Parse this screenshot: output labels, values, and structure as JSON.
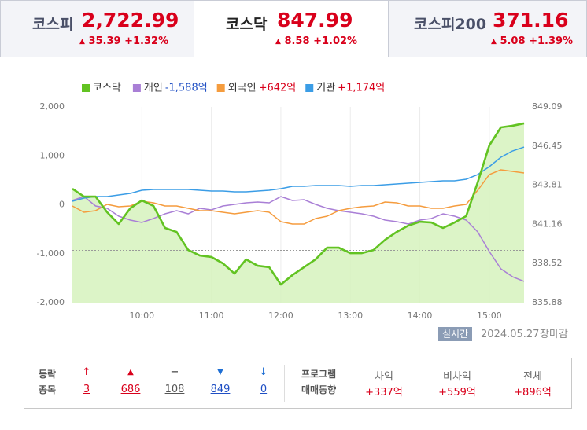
{
  "tabs": [
    {
      "name": "코스피",
      "value": "2,722.99",
      "change": "35.39",
      "rate": "+1.32%"
    },
    {
      "name": "코스닥",
      "value": "847.99",
      "change": "8.58",
      "rate": "+1.02%"
    },
    {
      "name": "코스피200",
      "value": "371.16",
      "change": "5.08",
      "rate": "+1.39%"
    }
  ],
  "chart_data": {
    "type": "line",
    "x": [
      "09:00",
      "09:10",
      "09:20",
      "09:30",
      "09:40",
      "09:50",
      "10:00",
      "10:10",
      "10:20",
      "10:30",
      "10:40",
      "10:50",
      "11:00",
      "11:10",
      "11:20",
      "11:30",
      "11:40",
      "11:50",
      "12:00",
      "12:10",
      "12:20",
      "12:30",
      "12:40",
      "12:50",
      "13:00",
      "13:10",
      "13:20",
      "13:30",
      "13:40",
      "13:50",
      "14:00",
      "14:10",
      "14:20",
      "14:30",
      "14:40",
      "14:50",
      "15:00",
      "15:10",
      "15:20",
      "15:30"
    ],
    "xticks": [
      "10:00",
      "11:00",
      "12:00",
      "13:00",
      "14:00",
      "15:00"
    ],
    "grid": "x",
    "ylim": [
      -2000,
      2000
    ],
    "yticks": [
      {
        "value": 2000,
        "label": "2,000"
      },
      {
        "value": 1000,
        "label": "1,000"
      },
      0,
      {
        "value": -1000,
        "label": "-1,000"
      },
      {
        "value": -2000,
        "label": "-2,000"
      }
    ],
    "y2lim": [
      835.88,
      849.09
    ],
    "y2ticks": [
      849.09,
      846.45,
      843.81,
      841.16,
      838.52,
      835.88
    ],
    "reference_line": {
      "value": 839.41,
      "axis": "y2",
      "color": "#999999"
    },
    "series": [
      {
        "name": "코스닥",
        "color": "#62c322",
        "axis": "y2",
        "fill": "#d6f2bd",
        "values": [
          843.57,
          843.04,
          843.04,
          841.98,
          841.19,
          842.25,
          842.78,
          842.41,
          840.92,
          840.65,
          839.43,
          839.06,
          838.96,
          838.53,
          837.84,
          838.8,
          838.37,
          838.27,
          837.1,
          837.74,
          838.27,
          838.8,
          839.59,
          839.59,
          839.22,
          839.22,
          839.43,
          840.12,
          840.65,
          841.08,
          841.34,
          841.29,
          840.92,
          841.29,
          841.72,
          844.0,
          846.49,
          847.71,
          847.82,
          847.98
        ]
      },
      {
        "name": "개인",
        "color": "#a97fd6",
        "legend_value": "-1,588억",
        "legend_value_color": "#1f4fc4",
        "values": [
          88,
          169,
          -24,
          -72,
          -233,
          -313,
          -361,
          -281,
          -185,
          -120,
          -185,
          -72,
          -104,
          -24,
          8,
          40,
          56,
          40,
          169,
          88,
          104,
          8,
          -72,
          -120,
          -153,
          -185,
          -233,
          -313,
          -345,
          -394,
          -313,
          -281,
          -185,
          -233,
          -313,
          -554,
          -956,
          -1309,
          -1470,
          -1566
        ]
      },
      {
        "name": "외국인",
        "color": "#f59c3e",
        "legend_value": "+642억",
        "legend_value_color": "#d9001b",
        "values": [
          -24,
          -153,
          -120,
          8,
          -40,
          -24,
          72,
          40,
          -24,
          -24,
          -72,
          -120,
          -120,
          -153,
          -185,
          -153,
          -120,
          -153,
          -345,
          -394,
          -394,
          -281,
          -233,
          -120,
          -72,
          -40,
          -24,
          56,
          40,
          -24,
          -24,
          -72,
          -72,
          -24,
          8,
          297,
          618,
          715,
          683,
          651
        ]
      },
      {
        "name": "기관",
        "color": "#3b9de6",
        "legend_value": "+1,174억",
        "legend_value_color": "#d9001b",
        "values": [
          72,
          137,
          169,
          169,
          201,
          233,
          297,
          313,
          313,
          313,
          313,
          297,
          281,
          281,
          265,
          265,
          281,
          297,
          329,
          378,
          378,
          394,
          394,
          394,
          378,
          394,
          394,
          410,
          426,
          442,
          458,
          474,
          490,
          490,
          522,
          618,
          779,
          972,
          1100,
          1180
        ]
      }
    ]
  },
  "status": {
    "badge": "실시간",
    "date": "2024.05.27",
    "session": "장마감"
  },
  "breadth": {
    "label": [
      "등락",
      "종목"
    ],
    "counts": [
      "3",
      "686",
      "108",
      "849",
      "0"
    ]
  },
  "program": {
    "label": [
      "프로그램",
      "매매동향"
    ],
    "columns": [
      {
        "name": "차익",
        "value": "+337억"
      },
      {
        "name": "비차익",
        "value": "+559억"
      },
      {
        "name": "전체",
        "value": "+896억"
      }
    ]
  }
}
